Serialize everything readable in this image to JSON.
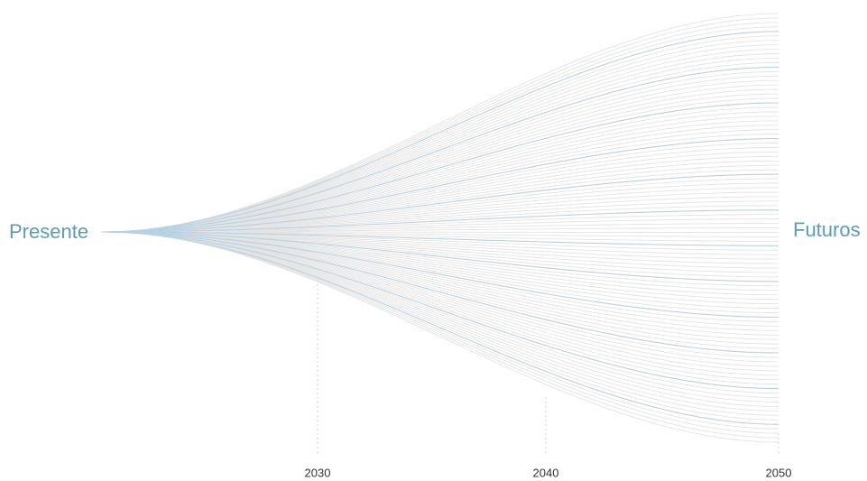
{
  "labels": {
    "start": "Presente",
    "end": "Futuros"
  },
  "years": [
    "2030",
    "2040",
    "2050"
  ]
}
